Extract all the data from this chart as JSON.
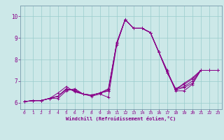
{
  "title": "",
  "xlabel": "Windchill (Refroidissement éolien,°C)",
  "bg_color": "#cce8e8",
  "line_color": "#880088",
  "grid_color": "#99cccc",
  "xlim": [
    -0.5,
    23.5
  ],
  "ylim": [
    5.7,
    10.5
  ],
  "yticks": [
    6,
    7,
    8,
    9,
    10
  ],
  "xticks": [
    0,
    1,
    2,
    3,
    4,
    5,
    6,
    7,
    8,
    9,
    10,
    11,
    12,
    13,
    14,
    15,
    16,
    17,
    18,
    19,
    20,
    21,
    22,
    23
  ],
  "series": [
    [
      6.05,
      6.1,
      6.1,
      6.2,
      6.2,
      6.55,
      6.65,
      6.4,
      6.35,
      6.45,
      6.55,
      8.8,
      9.85,
      9.45,
      9.45,
      9.25,
      8.35,
      7.5,
      6.55,
      6.55,
      6.85,
      7.5,
      7.5,
      7.5
    ],
    [
      6.05,
      6.1,
      6.1,
      6.2,
      6.45,
      6.75,
      6.5,
      6.4,
      6.35,
      6.45,
      6.55,
      8.75,
      9.85,
      9.45,
      9.45,
      9.25,
      8.35,
      7.45,
      6.6,
      6.7,
      6.9,
      7.5,
      7.5,
      7.5
    ],
    [
      6.05,
      6.1,
      6.1,
      6.2,
      6.3,
      6.65,
      6.55,
      6.4,
      6.35,
      6.45,
      6.65,
      8.75,
      9.85,
      9.45,
      9.45,
      9.25,
      8.35,
      7.45,
      6.65,
      6.75,
      7.0,
      7.5,
      7.5,
      7.5
    ],
    [
      6.05,
      6.1,
      6.1,
      6.2,
      6.3,
      6.65,
      6.55,
      6.4,
      6.35,
      6.45,
      6.6,
      8.75,
      9.85,
      9.45,
      9.45,
      9.25,
      8.35,
      7.4,
      6.65,
      6.85,
      7.1,
      7.5,
      7.5,
      7.5
    ],
    [
      6.05,
      6.1,
      6.1,
      6.2,
      6.3,
      6.6,
      6.6,
      6.4,
      6.3,
      6.4,
      6.25,
      8.7,
      9.85,
      9.45,
      9.45,
      9.25,
      8.35,
      7.4,
      6.6,
      6.9,
      7.15,
      7.5,
      7.5,
      7.5
    ]
  ]
}
